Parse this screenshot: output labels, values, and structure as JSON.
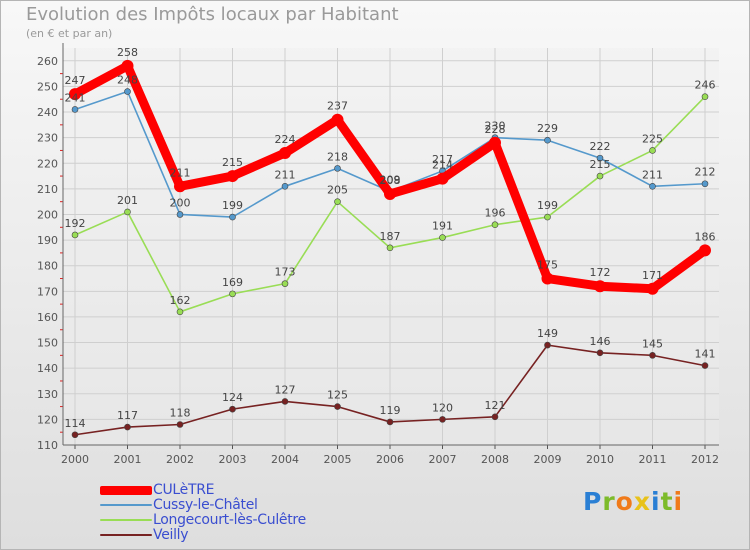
{
  "page": {
    "title": "Evolution des Impôts locaux par Habitant",
    "subtitle": "(en € et par an)"
  },
  "chart_data": {
    "type": "line",
    "title": "Evolution des Impôts locaux par Habitant",
    "subtitle": "(en € et par an)",
    "xlabel": "",
    "ylabel": "",
    "ylim": [
      110,
      265
    ],
    "yticks": [
      110,
      120,
      130,
      140,
      150,
      160,
      170,
      180,
      190,
      200,
      210,
      220,
      230,
      240,
      250,
      260
    ],
    "grid": true,
    "legend_position": "bottom-left",
    "categories": [
      "2000",
      "2001",
      "2002",
      "2003",
      "2004",
      "2005",
      "2006",
      "2007",
      "2008",
      "2009",
      "2010",
      "2011",
      "2012"
    ],
    "series": [
      {
        "name": "Longecourt-lès-Culêtre",
        "color": "#99dd55",
        "values": [
          192,
          201,
          162,
          169,
          173,
          205,
          187,
          191,
          196,
          199,
          215,
          225,
          246
        ]
      },
      {
        "name": "Veilly",
        "color": "#772222",
        "values": [
          114,
          117,
          118,
          124,
          127,
          125,
          119,
          120,
          121,
          149,
          146,
          145,
          141
        ]
      },
      {
        "name": "Cussy-le-Châtel",
        "color": "#5599cc",
        "values": [
          241,
          248,
          200,
          199,
          211,
          218,
          209,
          217,
          230,
          229,
          222,
          211,
          212
        ]
      },
      {
        "name": "CULèTRE",
        "color": "#ff0000",
        "values": [
          247,
          258,
          211,
          215,
          224,
          237,
          208,
          214,
          228,
          175,
          172,
          171,
          186
        ]
      }
    ]
  },
  "legend": {
    "items": [
      {
        "label": "CULèTRE",
        "color": "#ff0000"
      },
      {
        "label": "Cussy-le-Châtel",
        "color": "#5599cc"
      },
      {
        "label": "Longecourt-lès-Culêtre",
        "color": "#99dd55"
      },
      {
        "label": "Veilly",
        "color": "#772222"
      }
    ]
  },
  "brand": {
    "letters": [
      "P",
      "r",
      "o",
      "x",
      "i",
      "t",
      "i"
    ],
    "colors": [
      "#2a7fd4",
      "#7dbb2a",
      "#f07a1a",
      "#e8c21a",
      "#2a7fd4",
      "#7dbb2a",
      "#f07a1a"
    ]
  }
}
